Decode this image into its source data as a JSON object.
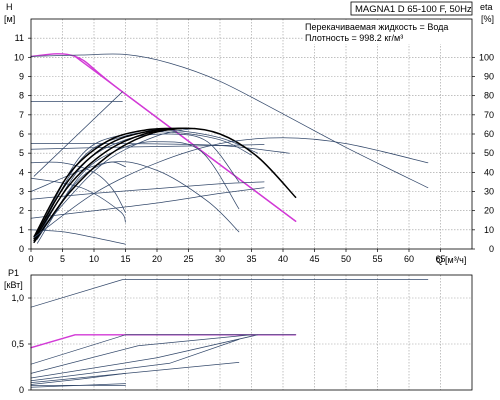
{
  "title": "MAGNA1 D 65-100 F, 50Hz",
  "info": {
    "line1": "Перекачиваемая жидкость = Вода",
    "line2": "Плотность = 998.2 кг/м³"
  },
  "colors": {
    "thin_curve": "#34496b",
    "bold_curve": "#000000",
    "magenta": "#d23ad6",
    "grid": "#9a9a9a"
  },
  "chart_data": [
    {
      "type": "line",
      "id": "head",
      "ylabel_top": "H",
      "ylabel_unit": "[м]",
      "y2label_top": "eta",
      "y2label_unit": "[%]",
      "xlabel_q": "Q",
      "xlabel_unit": "[м³/ч]",
      "xlim": [
        0,
        70
      ],
      "ylim": [
        0,
        12
      ],
      "y2lim": [
        0,
        120
      ],
      "xticks": [
        "0",
        "5",
        "10",
        "15",
        "20",
        "25",
        "30",
        "35",
        "40",
        "45",
        "50",
        "55",
        "60",
        "65"
      ],
      "yticks": [
        "0",
        "1",
        "2",
        "3",
        "4",
        "5",
        "6",
        "7",
        "8",
        "9",
        "10",
        "11"
      ],
      "y2ticks": [
        "0",
        "10",
        "20",
        "30",
        "40",
        "50",
        "60",
        "70",
        "80",
        "90",
        "100"
      ],
      "grid": true,
      "series": [
        {
          "style": "magenta",
          "axis": "left",
          "x": [
            0,
            7,
            14.5,
            42
          ],
          "y": [
            10.05,
            10.05,
            8.2,
            1.45
          ]
        },
        {
          "style": "magenta",
          "axis": "left",
          "x": [
            7,
            42
          ],
          "y": [
            10.05,
            1.45
          ]
        },
        {
          "style": "thin",
          "axis": "left",
          "x": [
            0,
            8,
            15,
            22,
            30,
            40,
            50,
            63
          ],
          "y": [
            10.05,
            10.12,
            10.15,
            9.7,
            8.75,
            7.05,
            5.3,
            3.2
          ]
        },
        {
          "style": "thin",
          "axis": "left",
          "x": [
            0,
            14.5
          ],
          "y": [
            7.7,
            7.7
          ]
        },
        {
          "style": "thin",
          "axis": "left",
          "x": [
            0.5,
            14.5
          ],
          "y": [
            3.8,
            8.2
          ]
        },
        {
          "style": "thin",
          "axis": "left",
          "x": [
            0,
            15,
            30,
            41
          ],
          "y": [
            5.5,
            5.5,
            5.4,
            5.0
          ]
        },
        {
          "style": "thin",
          "axis": "left",
          "x": [
            0,
            12,
            30,
            37
          ],
          "y": [
            5.2,
            5.3,
            5.4,
            5.45
          ]
        },
        {
          "style": "thin",
          "axis": "left",
          "x": [
            0,
            10,
            20,
            30,
            37
          ],
          "y": [
            2.6,
            2.9,
            3.15,
            3.4,
            3.5
          ]
        },
        {
          "style": "thin",
          "axis": "left",
          "x": [
            0,
            10,
            20,
            30,
            37
          ],
          "y": [
            1.6,
            2.0,
            2.4,
            2.9,
            3.2
          ]
        },
        {
          "style": "thin",
          "axis": "left",
          "x": [
            0,
            5,
            10,
            13,
            15
          ],
          "y": [
            4.5,
            4.5,
            4.0,
            3.1,
            1.9
          ]
        },
        {
          "style": "thin",
          "axis": "left",
          "x": [
            0,
            8,
            14,
            15
          ],
          "y": [
            3.7,
            3.2,
            2.0,
            1.4
          ]
        },
        {
          "style": "thin",
          "axis": "left",
          "x": [
            0,
            5,
            10,
            15
          ],
          "y": [
            1.0,
            0.9,
            0.6,
            0.25
          ]
        },
        {
          "style": "thin",
          "axis": "left",
          "x": [
            0,
            12,
            20,
            28,
            33
          ],
          "y": [
            3.0,
            4.5,
            4.1,
            2.5,
            0.9
          ]
        },
        {
          "style": "thin",
          "axis": "left",
          "x": [
            1,
            7,
            12,
            15
          ],
          "y": [
            0.3,
            3.4,
            4.5,
            4.3
          ]
        },
        {
          "style": "thin",
          "axis": "left",
          "x": [
            1,
            8,
            14,
            20,
            27,
            33
          ],
          "y": [
            0.5,
            3.9,
            5.2,
            5.6,
            5.1,
            2.1
          ]
        },
        {
          "style": "thin",
          "axis": "left",
          "x": [
            1,
            8,
            15,
            22,
            28,
            33
          ],
          "y": [
            0.6,
            4.3,
            5.7,
            6.0,
            5.6,
            3.5
          ]
        },
        {
          "style": "thin",
          "axis": "left",
          "x": [
            1,
            8,
            15,
            22,
            30,
            35
          ],
          "y": [
            0.7,
            4.7,
            5.9,
            6.1,
            5.7,
            4.9
          ]
        },
        {
          "style": "thin",
          "axis": "left",
          "x": [
            1,
            8,
            15,
            22,
            30,
            36
          ],
          "y": [
            0.8,
            4.9,
            6.0,
            6.2,
            5.8,
            5.0
          ]
        },
        {
          "style": "thin",
          "axis": "left",
          "x": [
            0.5,
            5,
            12,
            20,
            26
          ],
          "y": [
            0.4,
            2.3,
            4.6,
            5.9,
            6.3
          ]
        },
        {
          "style": "bold",
          "axis": "left",
          "x": [
            0.5,
            6,
            12,
            18,
            24,
            30,
            36,
            42
          ],
          "y": [
            0.35,
            2.9,
            4.8,
            5.9,
            6.3,
            6.0,
            4.8,
            2.7
          ]
        },
        {
          "style": "bold",
          "axis": "left",
          "x": [
            0.5,
            6,
            12,
            18,
            24
          ],
          "y": [
            0.45,
            3.3,
            5.1,
            6.0,
            6.3
          ]
        },
        {
          "style": "bold",
          "axis": "left",
          "x": [
            0.5,
            6,
            12,
            18,
            24
          ],
          "y": [
            0.55,
            3.6,
            5.4,
            6.1,
            6.3
          ]
        },
        {
          "style": "bold",
          "axis": "left",
          "x": [
            0.5,
            6,
            12,
            18,
            24
          ],
          "y": [
            0.65,
            3.9,
            5.6,
            6.2,
            6.3
          ]
        },
        {
          "style": "thin",
          "axis": "left",
          "x": [
            0.5,
            10,
            20,
            30,
            40,
            50,
            63
          ],
          "y": [
            0.6,
            2.9,
            4.5,
            5.5,
            5.8,
            5.5,
            4.5
          ]
        }
      ]
    },
    {
      "type": "line",
      "id": "power",
      "ylabel_top": "P1",
      "ylabel_unit": "[кВт]",
      "xlim": [
        0,
        70
      ],
      "ylim": [
        0,
        1.25
      ],
      "yticks": [
        "0",
        "0,5",
        "1,0"
      ],
      "ytick_values": [
        0,
        0.5,
        1.0
      ],
      "grid": true,
      "series": [
        {
          "style": "thin",
          "x": [
            0,
            14.5,
            63
          ],
          "y": [
            0.9,
            1.2,
            1.2
          ]
        },
        {
          "style": "magenta",
          "x": [
            0,
            7,
            42
          ],
          "y": [
            0.46,
            0.6,
            0.6
          ]
        },
        {
          "style": "thin",
          "x": [
            0,
            15,
            42
          ],
          "y": [
            0.28,
            0.6,
            0.6
          ]
        },
        {
          "style": "thin",
          "x": [
            0,
            17,
            35
          ],
          "y": [
            0.18,
            0.48,
            0.6
          ]
        },
        {
          "style": "thin",
          "x": [
            0,
            20,
            36
          ],
          "y": [
            0.13,
            0.35,
            0.6
          ]
        },
        {
          "style": "thin",
          "x": [
            0,
            22,
            33
          ],
          "y": [
            0.1,
            0.29,
            0.55
          ]
        },
        {
          "style": "thin",
          "x": [
            0,
            15,
            33
          ],
          "y": [
            0.08,
            0.18,
            0.3
          ]
        },
        {
          "style": "thin",
          "x": [
            0,
            8,
            15
          ],
          "y": [
            0.06,
            0.12,
            0.18
          ]
        },
        {
          "style": "thin",
          "x": [
            0,
            15
          ],
          "y": [
            0.05,
            0.05
          ]
        },
        {
          "style": "thin",
          "x": [
            0,
            15
          ],
          "y": [
            0.03,
            0.07
          ]
        }
      ]
    }
  ]
}
